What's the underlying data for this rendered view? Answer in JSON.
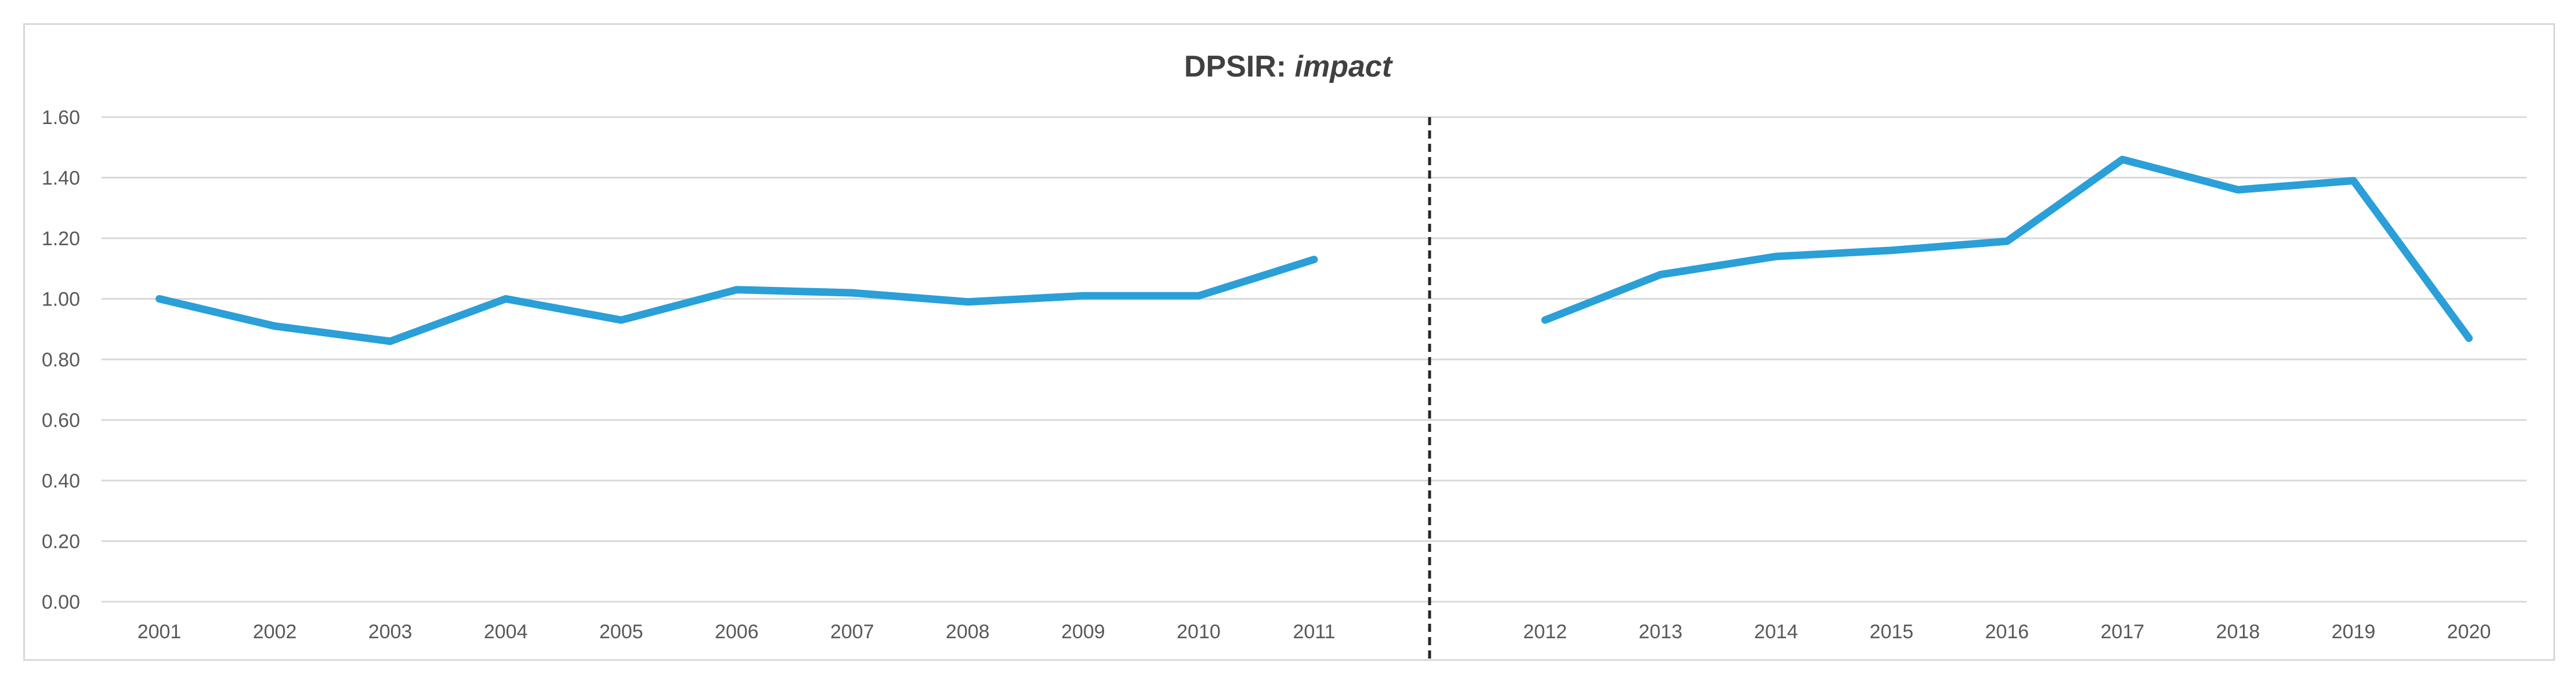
{
  "chart_data": {
    "type": "line",
    "title": "DPSIR: ",
    "title_emphasis": "impact",
    "xlabel": "",
    "ylabel": "",
    "ylim": [
      0,
      1.6
    ],
    "y_ticks": [
      "0.00",
      "0.20",
      "0.40",
      "0.60",
      "0.80",
      "1.00",
      "1.20",
      "1.40",
      "1.60"
    ],
    "categories": [
      "2001",
      "2002",
      "2003",
      "2004",
      "2005",
      "2006",
      "2007",
      "2008",
      "2009",
      "2010",
      "2011",
      "",
      "2012",
      "2013",
      "2014",
      "2015",
      "2016",
      "2017",
      "2018",
      "2019",
      "2020"
    ],
    "grid": true,
    "legend": "none",
    "divider_after": "2011",
    "series": [
      {
        "name": "impact",
        "color": "#2a9fd8",
        "segments": [
          {
            "x": [
              "2001",
              "2002",
              "2003",
              "2004",
              "2005",
              "2006",
              "2007",
              "2008",
              "2009",
              "2010",
              "2011"
            ],
            "values": [
              1.0,
              0.91,
              0.86,
              1.0,
              0.93,
              1.03,
              1.02,
              0.99,
              1.01,
              1.01,
              1.13
            ]
          },
          {
            "x": [
              "2012",
              "2013",
              "2014",
              "2015",
              "2016",
              "2017",
              "2018",
              "2019",
              "2020"
            ],
            "values": [
              0.93,
              1.08,
              1.14,
              1.16,
              1.19,
              1.46,
              1.36,
              1.39,
              0.87
            ]
          }
        ]
      }
    ]
  }
}
